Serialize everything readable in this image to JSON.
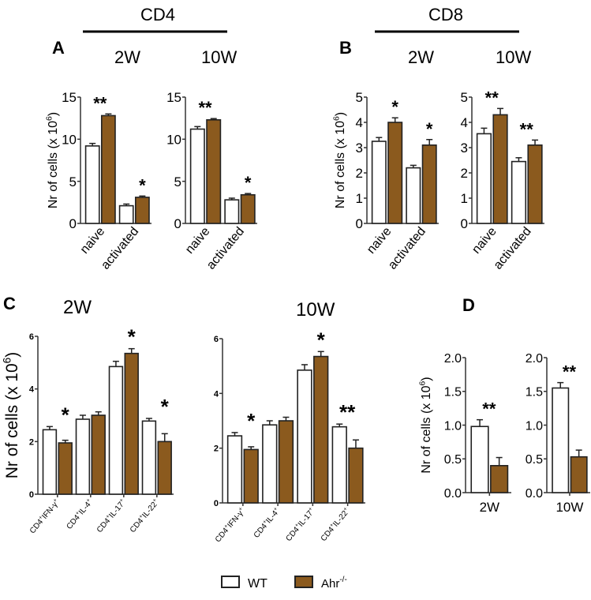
{
  "headers": {
    "cd4": "CD4",
    "cd8": "CD8"
  },
  "panel_letters": {
    "a": "A",
    "b": "B",
    "c": "C",
    "d": "D"
  },
  "legend": {
    "wt": "WT",
    "ko": "Ahr",
    "ko_sup": "-/-"
  },
  "colors": {
    "wt": "#ffffff",
    "ko": "#8B5A1E",
    "stroke": "#222222"
  },
  "chart_data": [
    {
      "id": "A-2W",
      "type": "bar",
      "title": "2W",
      "ylabel": "Nr of cells (x 10^6)",
      "ylim": [
        0,
        15
      ],
      "yticks": [
        0,
        5,
        10,
        15
      ],
      "categories": [
        "naive",
        "activated"
      ],
      "series": [
        {
          "name": "WT",
          "values": [
            9.2,
            2.1
          ],
          "errors": [
            0.3,
            0.2
          ]
        },
        {
          "name": "Ahr-/-",
          "values": [
            12.8,
            3.1
          ],
          "errors": [
            0.2,
            0.15
          ]
        }
      ],
      "annotations": [
        "**",
        "*"
      ]
    },
    {
      "id": "A-10W",
      "type": "bar",
      "title": "10W",
      "ylabel": "",
      "ylim": [
        0,
        15
      ],
      "yticks": [
        0,
        5,
        10,
        15
      ],
      "categories": [
        "naive",
        "activated"
      ],
      "series": [
        {
          "name": "WT",
          "values": [
            11.2,
            2.8
          ],
          "errors": [
            0.3,
            0.2
          ]
        },
        {
          "name": "Ahr-/-",
          "values": [
            12.3,
            3.4
          ],
          "errors": [
            0.15,
            0.15
          ]
        }
      ],
      "annotations": [
        "**",
        "*"
      ]
    },
    {
      "id": "B-2W",
      "type": "bar",
      "title": "2W",
      "ylabel": "Nr of cells (x 10^6)",
      "ylim": [
        0,
        5
      ],
      "yticks": [
        0,
        1,
        2,
        3,
        4,
        5
      ],
      "categories": [
        "naive",
        "activated"
      ],
      "series": [
        {
          "name": "WT",
          "values": [
            3.25,
            2.2
          ],
          "errors": [
            0.15,
            0.1
          ]
        },
        {
          "name": "Ahr-/-",
          "values": [
            4.0,
            3.1
          ],
          "errors": [
            0.18,
            0.22
          ]
        }
      ],
      "annotations": [
        "*",
        "*"
      ]
    },
    {
      "id": "B-10W",
      "type": "bar",
      "title": "10W",
      "ylabel": "",
      "ylim": [
        0,
        5
      ],
      "yticks": [
        0,
        1,
        2,
        3,
        4,
        5
      ],
      "categories": [
        "naive",
        "activated"
      ],
      "series": [
        {
          "name": "WT",
          "values": [
            3.55,
            2.45
          ],
          "errors": [
            0.22,
            0.15
          ]
        },
        {
          "name": "Ahr-/-",
          "values": [
            4.3,
            3.1
          ],
          "errors": [
            0.25,
            0.2
          ]
        }
      ],
      "annotations": [
        "**",
        "**"
      ]
    },
    {
      "id": "C-2W",
      "type": "bar",
      "title": "2W",
      "ylabel": "Nr of cells (x 10^6)",
      "ylim": [
        0,
        6
      ],
      "yticks": [
        0,
        2,
        4,
        6
      ],
      "categories": [
        "CD4+IFN-γ+",
        "CD4+IL-4+",
        "CD4+IL-17+",
        "CD4+IL-22+"
      ],
      "series": [
        {
          "name": "WT",
          "values": [
            2.45,
            2.85,
            4.85,
            2.78
          ],
          "errors": [
            0.12,
            0.15,
            0.2,
            0.1
          ]
        },
        {
          "name": "Ahr-/-",
          "values": [
            1.95,
            3.0,
            5.35,
            2.0
          ],
          "errors": [
            0.1,
            0.13,
            0.18,
            0.3
          ]
        }
      ],
      "annotations": [
        "*",
        "",
        "*",
        "*"
      ]
    },
    {
      "id": "C-10W",
      "type": "bar",
      "title": "10W",
      "ylabel": "",
      "ylim": [
        0,
        6
      ],
      "yticks": [
        0,
        2,
        4,
        6
      ],
      "categories": [
        "CD4+IFN-γ+",
        "CD4+IL-4+",
        "CD4+IL-17+",
        "CD4+IL-22+"
      ],
      "series": [
        {
          "name": "WT",
          "values": [
            2.45,
            2.85,
            4.85,
            2.78
          ],
          "errors": [
            0.12,
            0.15,
            0.2,
            0.1
          ]
        },
        {
          "name": "Ahr-/-",
          "values": [
            1.95,
            3.0,
            5.35,
            2.0
          ],
          "errors": [
            0.1,
            0.13,
            0.18,
            0.3
          ]
        }
      ],
      "annotations": [
        "*",
        "",
        "*",
        "**"
      ]
    },
    {
      "id": "D-2W",
      "type": "bar",
      "title": "",
      "ylabel": "Nr of cells (x 10^6)",
      "ylim": [
        0,
        2
      ],
      "yticks": [
        "0.0",
        "0.5",
        "1.0",
        "1.5",
        "2.0"
      ],
      "categories": [
        "2W"
      ],
      "series": [
        {
          "name": "WT",
          "values": [
            0.98
          ],
          "errors": [
            0.1
          ]
        },
        {
          "name": "Ahr-/-",
          "values": [
            0.4
          ],
          "errors": [
            0.12
          ]
        }
      ],
      "annotations": [
        "**"
      ]
    },
    {
      "id": "D-10W",
      "type": "bar",
      "title": "",
      "ylabel": "",
      "ylim": [
        0,
        2
      ],
      "yticks": [
        "0.0",
        "0.5",
        "1.0",
        "1.5",
        "2.0"
      ],
      "categories": [
        "10W"
      ],
      "series": [
        {
          "name": "WT",
          "values": [
            1.55
          ],
          "errors": [
            0.08
          ]
        },
        {
          "name": "Ahr-/-",
          "values": [
            0.53
          ],
          "errors": [
            0.1
          ]
        }
      ],
      "annotations": [
        "**"
      ]
    }
  ]
}
